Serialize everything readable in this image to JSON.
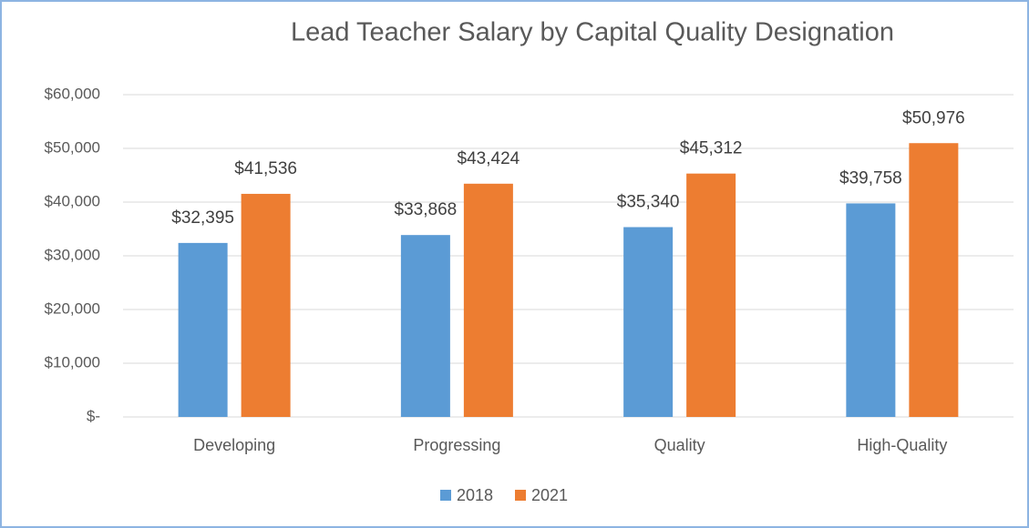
{
  "chart_data": {
    "type": "bar",
    "title": "Lead Teacher Salary by Capital Quality Designation",
    "categories": [
      "Developing",
      "Progressing",
      "Quality",
      "High-Quality"
    ],
    "series": [
      {
        "name": "2018",
        "color": "#5b9bd5",
        "values": [
          32395,
          33868,
          35340,
          39758
        ],
        "value_labels": [
          "$32,395",
          "$33,868",
          "$35,340",
          "$39,758"
        ]
      },
      {
        "name": "2021",
        "color": "#ed7d31",
        "values": [
          41536,
          43424,
          45312,
          50976
        ],
        "value_labels": [
          "$41,536",
          "$43,424",
          "$45,312",
          "$50,976"
        ]
      }
    ],
    "ylim": [
      0,
      60000
    ],
    "yticks": [
      {
        "value": 0,
        "label": "$-"
      },
      {
        "value": 10000,
        "label": "$10,000"
      },
      {
        "value": 20000,
        "label": "$20,000"
      },
      {
        "value": 30000,
        "label": "$30,000"
      },
      {
        "value": 40000,
        "label": "$40,000"
      },
      {
        "value": 50000,
        "label": "$50,000"
      },
      {
        "value": 60000,
        "label": "$60,000"
      }
    ],
    "grid": true,
    "legend": "bottom"
  }
}
